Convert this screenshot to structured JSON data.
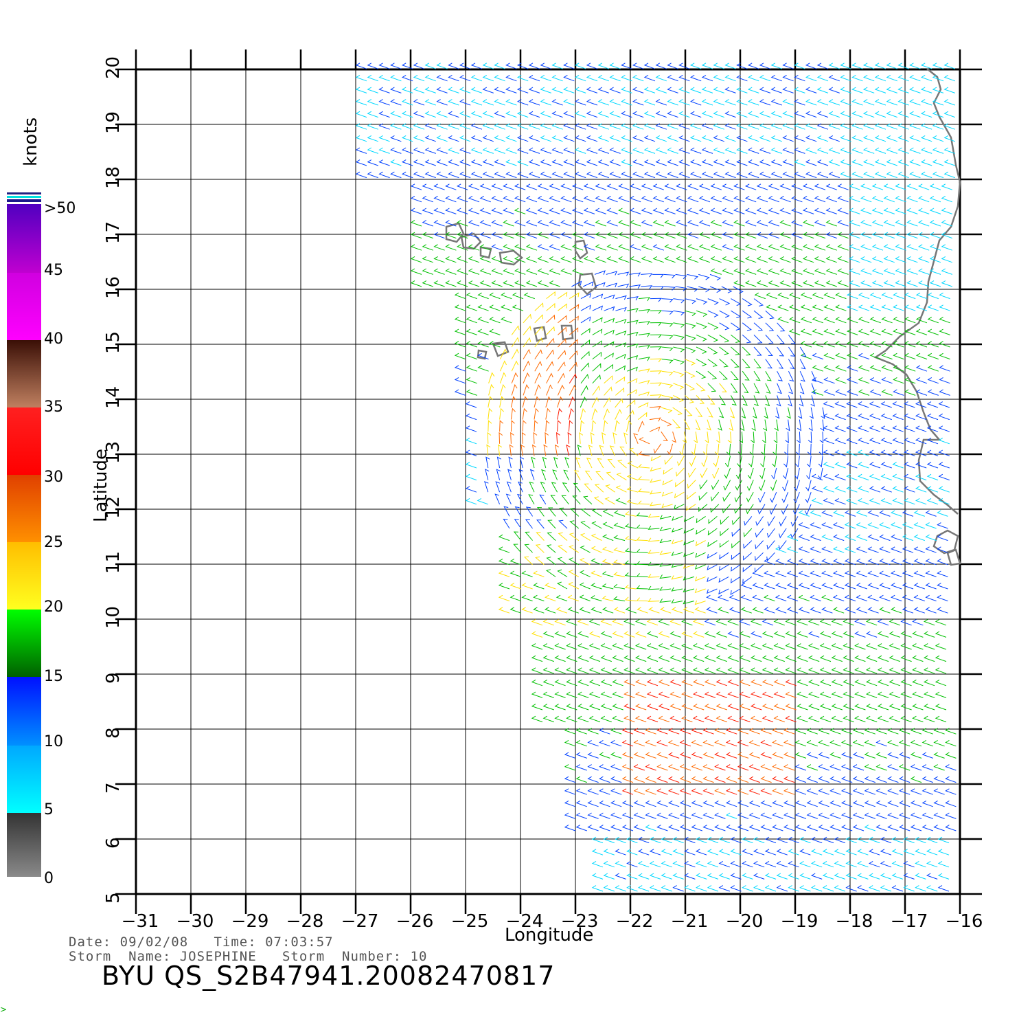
{
  "map": {
    "type": "wind_vector_map",
    "x_axis": {
      "title": "Longitude",
      "ticks": [
        "−31",
        "−30",
        "−29",
        "−28",
        "−27",
        "−26",
        "−25",
        "−24",
        "−23",
        "−22",
        "−21",
        "−20",
        "−19",
        "−18",
        "−17",
        "−16"
      ],
      "range": [
        -31,
        -16
      ]
    },
    "y_axis": {
      "title": "Latitude",
      "ticks": [
        "5",
        "6",
        "7",
        "8",
        "9",
        "10",
        "11",
        "12",
        "13",
        "14",
        "15",
        "16",
        "17",
        "18",
        "19",
        "20"
      ],
      "range": [
        5,
        20
      ]
    },
    "grid": true,
    "swath_west_edge_lon": [
      -26.8,
      -25.8,
      -25.0,
      -24.8,
      -24.2,
      -23.6,
      -23.0,
      -22.5
    ],
    "coastline_color": "#777777",
    "storm_center": {
      "lon": -21.6,
      "lat": 13.3
    }
  },
  "legend": {
    "title": "knots",
    "labels": [
      ">50",
      "45",
      "40",
      "35",
      "30",
      "25",
      "20",
      "15",
      "10",
      "5",
      "0"
    ],
    "colors": {
      "0-5": "#555555",
      "5-10": "#00d8ff",
      "10-15": "#0040ff",
      "15-20": "#00c000",
      "20-25": "#ffe000",
      "25-30": "#ff6a00",
      "30-35": "#ff1a00",
      "35-40": "#8a3010",
      "40-45": "#ff00e0",
      "45-50": "#a000c0",
      ">50": "#5000a0"
    }
  },
  "metadata": {
    "date_line": "Date: 09/02/08   Time: 07:03:57",
    "storm_line": "Storm  Name: JOSEPHINE   Storm  Number: 10",
    "product_id": "BYU  QS_S2B47941.20082470817"
  },
  "corner_mark": ">"
}
